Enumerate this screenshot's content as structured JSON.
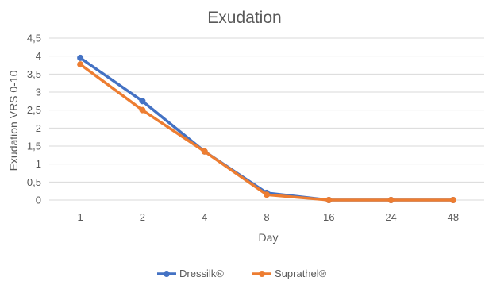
{
  "chart_data": {
    "type": "line",
    "title": "Exudation",
    "xlabel": "Day",
    "ylabel": "Exudation VRS 0-10",
    "categories": [
      "1",
      "2",
      "4",
      "8",
      "16",
      "24",
      "48"
    ],
    "ylim": [
      0,
      4.5
    ],
    "y_ticks": [
      "0",
      "0,5",
      "1",
      "1,5",
      "2",
      "2,5",
      "3",
      "3,5",
      "4",
      "4,5"
    ],
    "grid": true,
    "legend_position": "bottom",
    "series": [
      {
        "name": "Dressilk®",
        "color": "#4472C4",
        "values": [
          3.95,
          2.75,
          1.35,
          0.2,
          0,
          0,
          0
        ]
      },
      {
        "name": "Suprathel®",
        "color": "#ED7D31",
        "values": [
          3.77,
          2.5,
          1.35,
          0.15,
          0,
          0,
          0
        ]
      }
    ]
  }
}
